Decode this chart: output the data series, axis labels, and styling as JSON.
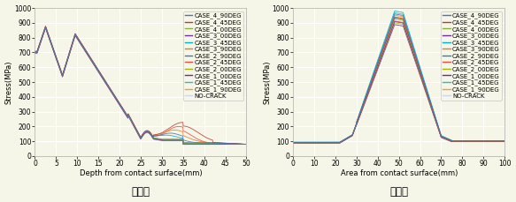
{
  "legend_labels": [
    "CASE_4_90DEG",
    "CASE_4_45DEG",
    "CASE_4_00DEG",
    "CASE_3_00DEG",
    "CASE_3_45DEG",
    "CASE_3_90DEG",
    "CASE_2_90DEG",
    "CASE_2_45DEG",
    "CASE_2_00DEG",
    "CASE_1_00DEG",
    "CASE_1_45DEG",
    "CASE_1_90DEG",
    "NO-CRACK"
  ],
  "legend_colors": [
    "#4472c4",
    "#c0392b",
    "#8db03b",
    "#7030a0",
    "#00b0d0",
    "#e67e22",
    "#2980b9",
    "#e74c3c",
    "#a8b400",
    "#6030a0",
    "#20c0c8",
    "#f0a030",
    "#c8d8f0"
  ],
  "left_title": "종방향",
  "right_title": "횟방향",
  "left_xlabel": "Depth from contact surface(mm)",
  "right_xlabel": "Area from contact surface(mm)",
  "ylabel": "Stress(MPa)",
  "left_xlim": [
    0,
    50
  ],
  "right_xlim": [
    0,
    100
  ],
  "ylim": [
    0,
    1000
  ],
  "left_xticks": [
    0,
    5,
    10,
    15,
    20,
    25,
    30,
    35,
    40,
    45,
    50
  ],
  "right_xticks": [
    0,
    10,
    20,
    30,
    40,
    50,
    60,
    70,
    80,
    90,
    100
  ],
  "yticks": [
    0,
    100,
    200,
    300,
    400,
    500,
    600,
    700,
    800,
    900,
    1000
  ],
  "bg_color": "#f5f5e8",
  "grid_color": "#ffffff",
  "legend_fontsize": 5.0,
  "axis_label_fontsize": 6.0,
  "tick_fontsize": 5.5,
  "title_fontsize": 8.5
}
